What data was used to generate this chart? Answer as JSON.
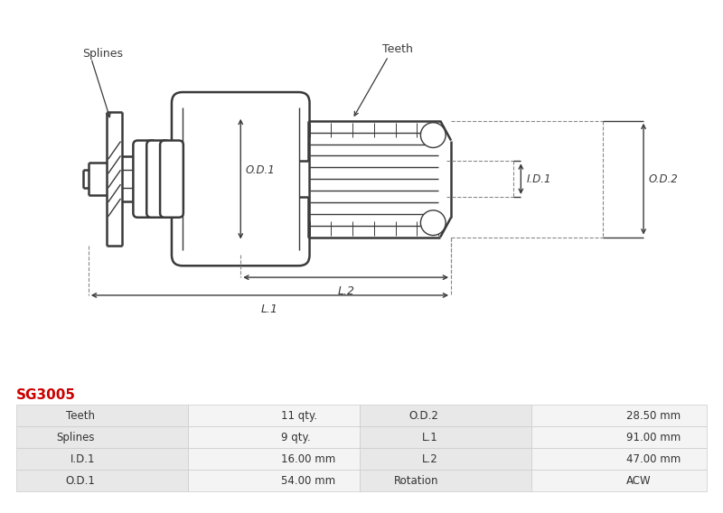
{
  "title": "SG3005",
  "title_color": "#cc0000",
  "bg_color": "#ffffff",
  "line_color": "#3a3a3a",
  "dim_color": "#3a3a3a",
  "dash_color": "#888888",
  "table_rows": [
    [
      "Teeth",
      "11 qty.",
      "O.D.2",
      "28.50 mm"
    ],
    [
      "Splines",
      "9 qty.",
      "L.1",
      "91.00 mm"
    ],
    [
      "I.D.1",
      "16.00 mm",
      "L.2",
      "47.00 mm"
    ],
    [
      "O.D.1",
      "54.00 mm",
      "Rotation",
      "ACW"
    ]
  ],
  "label_splines": "Splines",
  "label_teeth": "Teeth",
  "label_od1": "O.D.1",
  "label_od2": "O.D.2",
  "label_id1": "I.D.1",
  "label_l1": "L.1",
  "label_l2": "L.2",
  "font_size_label": 9,
  "font_size_dim": 8.5
}
